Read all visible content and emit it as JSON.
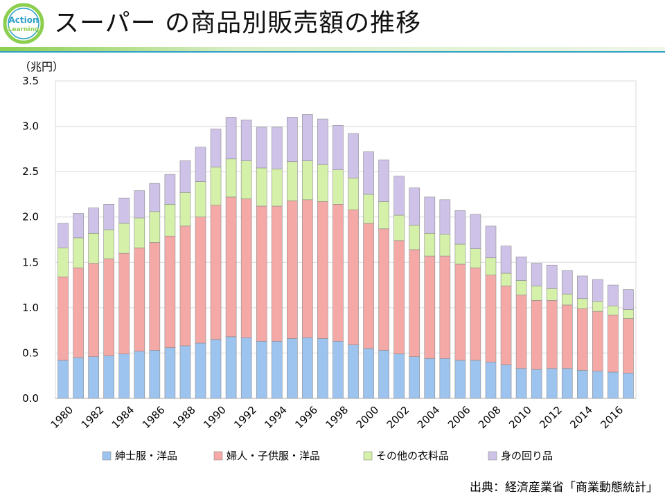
{
  "header": {
    "logo_line1": "Action",
    "logo_line2": "Learning",
    "title": "スーパー の商品別販売額の推移"
  },
  "source": "出典：経済産業省「商業動態統計」",
  "colors": {
    "accent": "#2e9fc7",
    "divider_green": "#8ccf4f",
    "grid": "#d9d9d9"
  },
  "chart_data": {
    "type": "bar",
    "stacked": true,
    "title": "スーパー の商品別販売額の推移",
    "ylabel": "（兆円）",
    "xlabel": "",
    "ylim": [
      0,
      3.5
    ],
    "yticks": [
      0,
      0.5,
      1.0,
      1.5,
      2.0,
      2.5,
      3.0,
      3.5
    ],
    "ytick_labels": [
      "0.0",
      "0.5",
      "1.0",
      "1.5",
      "2.0",
      "2.5",
      "3.0",
      "3.5"
    ],
    "grid": true,
    "legend_position": "bottom",
    "categories": [
      "1980",
      "1981",
      "1982",
      "1983",
      "1984",
      "1985",
      "1986",
      "1987",
      "1988",
      "1989",
      "1990",
      "1991",
      "1992",
      "1993",
      "1994",
      "1995",
      "1996",
      "1997",
      "1998",
      "1999",
      "2000",
      "2001",
      "2002",
      "2003",
      "2004",
      "2005",
      "2006",
      "2007",
      "2008",
      "2009",
      "2010",
      "2011",
      "2012",
      "2013",
      "2014",
      "2015",
      "2016",
      "2017"
    ],
    "xtick_labels": [
      "1980",
      "1982",
      "1984",
      "1986",
      "1988",
      "1990",
      "1992",
      "1994",
      "1996",
      "1998",
      "2000",
      "2002",
      "2004",
      "2006",
      "2008",
      "2010",
      "2012",
      "2014",
      "2016"
    ],
    "series": [
      {
        "name": "紳士服・洋品",
        "color": "#9dc3ef",
        "values": [
          0.42,
          0.45,
          0.46,
          0.47,
          0.49,
          0.52,
          0.53,
          0.56,
          0.58,
          0.61,
          0.65,
          0.68,
          0.67,
          0.63,
          0.63,
          0.66,
          0.67,
          0.66,
          0.63,
          0.59,
          0.55,
          0.53,
          0.49,
          0.46,
          0.44,
          0.44,
          0.42,
          0.42,
          0.4,
          0.37,
          0.33,
          0.32,
          0.33,
          0.33,
          0.31,
          0.3,
          0.29,
          0.28
        ]
      },
      {
        "name": "婦人・子供服・洋品",
        "color": "#f5a9a7",
        "values": [
          0.92,
          0.99,
          1.03,
          1.07,
          1.11,
          1.14,
          1.19,
          1.23,
          1.32,
          1.39,
          1.48,
          1.54,
          1.53,
          1.49,
          1.49,
          1.52,
          1.52,
          1.51,
          1.51,
          1.49,
          1.38,
          1.34,
          1.25,
          1.18,
          1.13,
          1.13,
          1.06,
          1.02,
          0.96,
          0.87,
          0.81,
          0.76,
          0.75,
          0.7,
          0.68,
          0.66,
          0.63,
          0.6
        ]
      },
      {
        "name": "その他の衣料品",
        "color": "#d5f0a8",
        "values": [
          0.32,
          0.33,
          0.33,
          0.32,
          0.33,
          0.33,
          0.34,
          0.35,
          0.37,
          0.39,
          0.42,
          0.42,
          0.42,
          0.42,
          0.41,
          0.43,
          0.43,
          0.41,
          0.38,
          0.35,
          0.32,
          0.3,
          0.28,
          0.27,
          0.25,
          0.24,
          0.22,
          0.21,
          0.19,
          0.14,
          0.16,
          0.16,
          0.13,
          0.12,
          0.11,
          0.11,
          0.1,
          0.1
        ]
      },
      {
        "name": "身の回り品",
        "color": "#cfc2e8",
        "values": [
          0.27,
          0.27,
          0.28,
          0.28,
          0.28,
          0.3,
          0.31,
          0.33,
          0.35,
          0.38,
          0.42,
          0.46,
          0.45,
          0.45,
          0.46,
          0.49,
          0.51,
          0.5,
          0.49,
          0.49,
          0.47,
          0.46,
          0.43,
          0.41,
          0.4,
          0.38,
          0.37,
          0.38,
          0.35,
          0.3,
          0.26,
          0.25,
          0.26,
          0.26,
          0.25,
          0.24,
          0.23,
          0.22
        ]
      }
    ]
  }
}
